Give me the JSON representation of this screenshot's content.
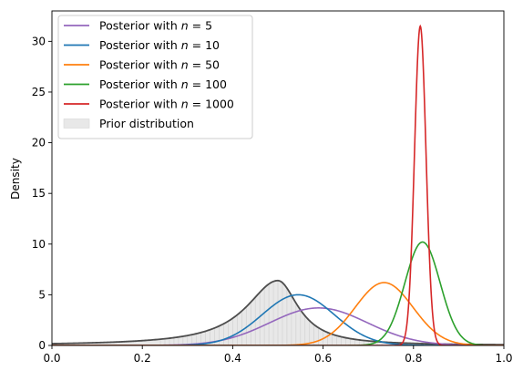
{
  "chart_data": {
    "type": "line",
    "title": "",
    "xlabel": "",
    "ylabel": "Density",
    "xlim": [
      0,
      1
    ],
    "ylim": [
      0,
      33
    ],
    "grid": false,
    "legend_position": "top-left",
    "x_ticks": [
      "0.0",
      "0.2",
      "0.4",
      "0.6",
      "0.8",
      "1.0"
    ],
    "y_ticks": [
      "0",
      "5",
      "10",
      "15",
      "20",
      "25",
      "30"
    ],
    "series": [
      {
        "name": "Posterior with n = 5",
        "legend_prefix": "Posterior with ",
        "legend_var": "n",
        "legend_value": " = 5",
        "color": "#9467bd",
        "peak_x": 0.59,
        "peak_y": 3.7,
        "sd": 0.108
      },
      {
        "name": "Posterior with n = 10",
        "legend_prefix": "Posterior with ",
        "legend_var": "n",
        "legend_value": " = 10",
        "color": "#1f77b4",
        "peak_x": 0.545,
        "peak_y": 5.0,
        "sd": 0.08
      },
      {
        "name": "Posterior with n = 50",
        "legend_prefix": "Posterior with ",
        "legend_var": "n",
        "legend_value": " = 50",
        "color": "#ff7f0e",
        "peak_x": 0.735,
        "peak_y": 6.2,
        "sd": 0.064
      },
      {
        "name": "Posterior with n = 100",
        "legend_prefix": "Posterior with ",
        "legend_var": "n",
        "legend_value": " = 100",
        "color": "#2ca02c",
        "peak_x": 0.82,
        "peak_y": 10.2,
        "sd": 0.039
      },
      {
        "name": "Posterior with n = 1000",
        "legend_prefix": "Posterior with ",
        "legend_var": "n",
        "legend_value": " = 1000",
        "color": "#d62728",
        "peak_x": 0.815,
        "peak_y": 31.5,
        "sd": 0.0127
      }
    ],
    "prior": {
      "name": "Prior distribution",
      "line_color": "#4d4d4d",
      "fill_color": "#e8e8e8",
      "peak_x": 0.5,
      "peak_y": 6.4
    }
  }
}
